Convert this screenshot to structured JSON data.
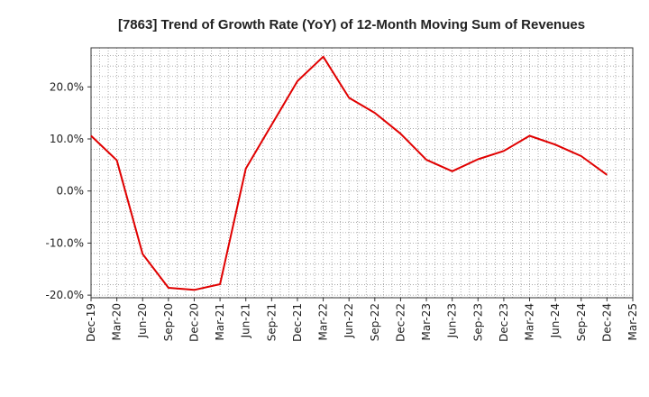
{
  "chart_data": {
    "type": "line",
    "title": "[7863]  Trend of Growth Rate (YoY) of 12-Month Moving Sum of Revenues",
    "xlabel": "",
    "ylabel": "",
    "x_ticks": [
      "Dec-19",
      "Mar-20",
      "Jun-20",
      "Sep-20",
      "Dec-20",
      "Mar-21",
      "Jun-21",
      "Sep-21",
      "Dec-21",
      "Mar-22",
      "Jun-22",
      "Sep-22",
      "Dec-22",
      "Mar-23",
      "Jun-23",
      "Sep-23",
      "Dec-23",
      "Mar-24",
      "Jun-24",
      "Sep-24",
      "Dec-24",
      "Mar-25"
    ],
    "y_ticks": [
      20,
      10,
      0,
      -10,
      -20
    ],
    "y_tick_labels": [
      "20.0%",
      "10.0%",
      "0.0%",
      "-10.0%",
      "-20.0%"
    ],
    "ylim": [
      -20.5,
      27.5
    ],
    "unit": "%",
    "grid": true,
    "legend": "none",
    "series": [
      {
        "color": "#e00000",
        "x": [
          "Dec-19",
          "Mar-20",
          "Jun-20",
          "Sep-20",
          "Dec-20",
          "Mar-21",
          "Jun-21",
          "Sep-21",
          "Dec-21",
          "Mar-22",
          "Jun-22",
          "Sep-22",
          "Dec-22",
          "Mar-23",
          "Jun-23",
          "Sep-23",
          "Dec-23",
          "Mar-24",
          "Jun-24",
          "Sep-24",
          "Dec-24"
        ],
        "values": [
          10.6,
          5.9,
          -12.1,
          -18.6,
          -19.0,
          -17.9,
          4.3,
          12.7,
          21.1,
          25.8,
          17.9,
          15.0,
          11.0,
          6.0,
          3.8,
          6.1,
          7.7,
          10.6,
          8.9,
          6.7,
          3.1
        ]
      }
    ]
  }
}
